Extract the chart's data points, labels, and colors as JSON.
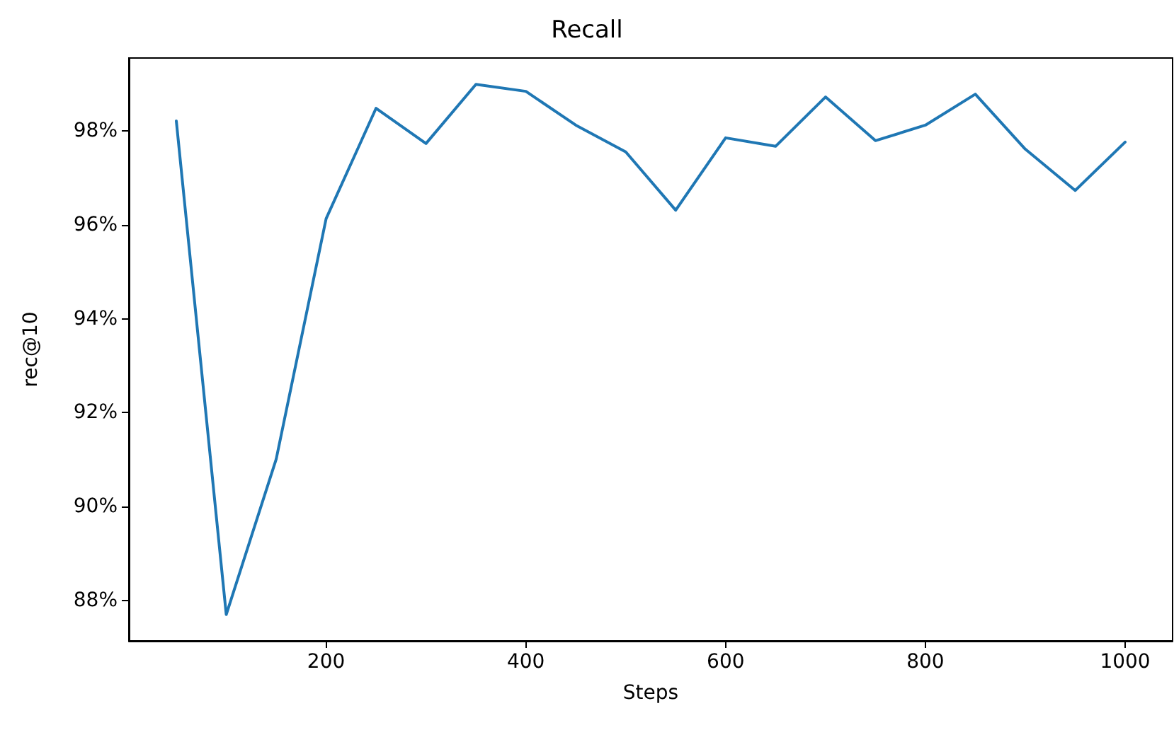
{
  "chart_data": {
    "type": "line",
    "title": "Recall",
    "xlabel": "Steps",
    "ylabel": "rec@10",
    "x": [
      50,
      100,
      150,
      200,
      250,
      300,
      350,
      400,
      450,
      500,
      550,
      600,
      650,
      700,
      750,
      800,
      850,
      900,
      950,
      1000
    ],
    "series": [
      {
        "color": "#1f77b4",
        "values": [
          98.21,
          87.7,
          91.01,
          96.13,
          98.48,
          97.73,
          98.99,
          98.84,
          98.12,
          97.55,
          96.31,
          97.85,
          97.67,
          98.72,
          97.79,
          98.12,
          98.78,
          97.61,
          96.73,
          97.76
        ]
      }
    ],
    "xlim": [
      2.5,
      1047.5
    ],
    "xticks": [
      200,
      400,
      600,
      800,
      1000
    ],
    "ylim": [
      87.14,
      99.55
    ],
    "yticks": [
      {
        "value": 88,
        "label": "88%"
      },
      {
        "value": 90,
        "label": "90%"
      },
      {
        "value": 92,
        "label": "92%"
      },
      {
        "value": 94,
        "label": "94%"
      },
      {
        "value": 96,
        "label": "96%"
      },
      {
        "value": 98,
        "label": "98%"
      }
    ],
    "marker": "none",
    "line_style": "solid"
  }
}
